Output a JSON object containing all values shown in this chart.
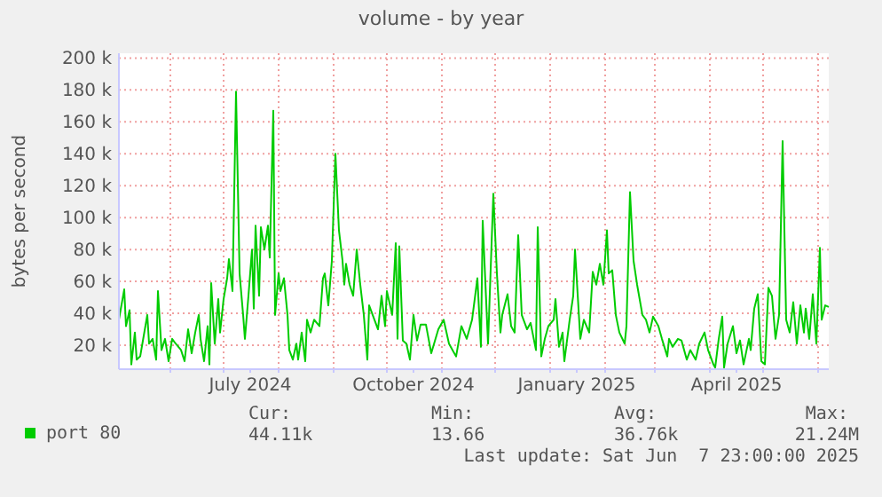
{
  "chart_data": {
    "type": "line",
    "title": "volume - by year",
    "ylabel": "bytes per second",
    "xlim": [
      "2024-05-03",
      "2025-06-07"
    ],
    "xticks": [
      {
        "value": "2024-06-01",
        "label": null
      },
      {
        "value": "2024-07-01",
        "label": null
      },
      {
        "value": "2024-07-16",
        "label": "July 2024"
      },
      {
        "value": "2024-08-01",
        "label": null
      },
      {
        "value": "2024-09-01",
        "label": null
      },
      {
        "value": "2024-10-01",
        "label": null
      },
      {
        "value": "2024-10-16",
        "label": "October 2024"
      },
      {
        "value": "2024-11-01",
        "label": null
      },
      {
        "value": "2024-12-01",
        "label": null
      },
      {
        "value": "2025-01-01",
        "label": null
      },
      {
        "value": "2025-01-16",
        "label": "January 2025"
      },
      {
        "value": "2025-02-01",
        "label": null
      },
      {
        "value": "2025-03-01",
        "label": null
      },
      {
        "value": "2025-04-01",
        "label": null
      },
      {
        "value": "2025-04-16",
        "label": "April 2025"
      },
      {
        "value": "2025-05-01",
        "label": null
      },
      {
        "value": "2025-06-01",
        "label": null
      }
    ],
    "ylim": [
      5000,
      203000
    ],
    "yticks": [
      {
        "value": 20000,
        "label": "20 k"
      },
      {
        "value": 40000,
        "label": "40 k"
      },
      {
        "value": 60000,
        "label": "60 k"
      },
      {
        "value": 80000,
        "label": "80 k"
      },
      {
        "value": 100000,
        "label": "100 k"
      },
      {
        "value": 120000,
        "label": "120 k"
      },
      {
        "value": 140000,
        "label": "140 k"
      },
      {
        "value": 160000,
        "label": "160 k"
      },
      {
        "value": 180000,
        "label": "180 k"
      },
      {
        "value": 200000,
        "label": "200 k"
      }
    ],
    "grid": true,
    "legend": "bottom",
    "marker": "none",
    "line_style": "solid",
    "annotations": [
      "Cur:",
      "44.11k",
      "Min:",
      "13.66",
      "Avg:",
      "36.76k",
      "Max:",
      "21.24M",
      "Last update: Sat Jun  7 23:00:00 2025"
    ],
    "series": [
      {
        "name": "port 80",
        "color": "#00cc00",
        "x": [
          "2024-05-03",
          "2024-05-06",
          "2024-05-07",
          "2024-05-09",
          "2024-05-10",
          "2024-05-12",
          "2024-05-13",
          "2024-05-15",
          "2024-05-17",
          "2024-05-19",
          "2024-05-20",
          "2024-05-22",
          "2024-05-24",
          "2024-05-25",
          "2024-05-27",
          "2024-05-29",
          "2024-05-31",
          "2024-06-02",
          "2024-06-04",
          "2024-06-07",
          "2024-06-09",
          "2024-06-11",
          "2024-06-13",
          "2024-06-15",
          "2024-06-17",
          "2024-06-18",
          "2024-06-20",
          "2024-06-22",
          "2024-06-23",
          "2024-06-24",
          "2024-06-26",
          "2024-06-28",
          "2024-06-29",
          "2024-07-01",
          "2024-07-03",
          "2024-07-04",
          "2024-07-06",
          "2024-07-08",
          "2024-07-10",
          "2024-07-12",
          "2024-07-13",
          "2024-07-15",
          "2024-07-17",
          "2024-07-18",
          "2024-07-19",
          "2024-07-21",
          "2024-07-22",
          "2024-07-24",
          "2024-07-26",
          "2024-07-27",
          "2024-07-29",
          "2024-07-30",
          "2024-08-01",
          "2024-08-02",
          "2024-08-04",
          "2024-08-06",
          "2024-08-07",
          "2024-08-09",
          "2024-08-11",
          "2024-08-12",
          "2024-08-14",
          "2024-08-16",
          "2024-08-17",
          "2024-08-19",
          "2024-08-21",
          "2024-08-24",
          "2024-08-26",
          "2024-08-27",
          "2024-08-29",
          "2024-08-31",
          "2024-09-02",
          "2024-09-04",
          "2024-09-06",
          "2024-09-07",
          "2024-09-08",
          "2024-09-10",
          "2024-09-12",
          "2024-09-14",
          "2024-09-16",
          "2024-09-18",
          "2024-09-20",
          "2024-09-21",
          "2024-09-23",
          "2024-09-26",
          "2024-09-28",
          "2024-09-30",
          "2024-10-01",
          "2024-10-04",
          "2024-10-06",
          "2024-10-07",
          "2024-10-08",
          "2024-10-10",
          "2024-10-12",
          "2024-10-14",
          "2024-10-16",
          "2024-10-18",
          "2024-10-20",
          "2024-10-23",
          "2024-10-26",
          "2024-10-30",
          "2024-11-02",
          "2024-11-05",
          "2024-11-09",
          "2024-11-12",
          "2024-11-15",
          "2024-11-18",
          "2024-11-21",
          "2024-11-23",
          "2024-11-24",
          "2024-11-27",
          "2024-11-30",
          "2024-12-02",
          "2024-12-04",
          "2024-12-05",
          "2024-12-08",
          "2024-12-10",
          "2024-12-12",
          "2024-12-14",
          "2024-12-16",
          "2024-12-19",
          "2024-12-21",
          "2024-12-24",
          "2024-12-25",
          "2024-12-27",
          "2024-12-29",
          "2024-12-31",
          "2025-01-03",
          "2025-01-04",
          "2025-01-06",
          "2025-01-08",
          "2025-01-09",
          "2025-01-12",
          "2025-01-14",
          "2025-01-15",
          "2025-01-18",
          "2025-01-20",
          "2025-01-23",
          "2025-01-25",
          "2025-01-27",
          "2025-01-29",
          "2025-01-31",
          "2025-02-02",
          "2025-02-03",
          "2025-02-05",
          "2025-02-07",
          "2025-02-09",
          "2025-02-12",
          "2025-02-13",
          "2025-02-15",
          "2025-02-17",
          "2025-02-19",
          "2025-02-22",
          "2025-02-24",
          "2025-02-26",
          "2025-02-28",
          "2025-03-03",
          "2025-03-05",
          "2025-03-08",
          "2025-03-09",
          "2025-03-11",
          "2025-03-14",
          "2025-03-16",
          "2025-03-19",
          "2025-03-21",
          "2025-03-24",
          "2025-03-26",
          "2025-03-29",
          "2025-03-31",
          "2025-04-03",
          "2025-04-04",
          "2025-04-06",
          "2025-04-08",
          "2025-04-09",
          "2025-04-11",
          "2025-04-14",
          "2025-04-16",
          "2025-04-18",
          "2025-04-20",
          "2025-04-23",
          "2025-04-24",
          "2025-04-26",
          "2025-04-28",
          "2025-04-30",
          "2025-05-02",
          "2025-05-04",
          "2025-05-06",
          "2025-05-08",
          "2025-05-10",
          "2025-05-12",
          "2025-05-14",
          "2025-05-16",
          "2025-05-18",
          "2025-05-20",
          "2025-05-22",
          "2025-05-24",
          "2025-05-25",
          "2025-05-27",
          "2025-05-29",
          "2025-05-31",
          "2025-06-02",
          "2025-06-03",
          "2025-06-05",
          "2025-06-07"
        ],
        "values": [
          36000,
          55000,
          32000,
          42000,
          8000,
          28000,
          11000,
          13000,
          26000,
          39000,
          21000,
          24000,
          11000,
          54000,
          17000,
          24000,
          10000,
          24000,
          21000,
          17000,
          10000,
          30000,
          15000,
          28000,
          39000,
          24000,
          10000,
          32000,
          8000,
          59000,
          21000,
          49000,
          28000,
          49000,
          62000,
          74000,
          54000,
          179000,
          65000,
          39000,
          24000,
          51000,
          80000,
          43000,
          95000,
          51000,
          94000,
          80000,
          95000,
          75000,
          167000,
          39000,
          65000,
          54000,
          62000,
          39000,
          17000,
          11000,
          21000,
          11000,
          28000,
          10000,
          36000,
          28000,
          36000,
          32000,
          62000,
          65000,
          45000,
          73000,
          140000,
          92000,
          73000,
          58000,
          71000,
          58000,
          51000,
          80000,
          58000,
          39000,
          11000,
          45000,
          39000,
          30000,
          51000,
          32000,
          54000,
          39000,
          84000,
          24000,
          82000,
          23000,
          21000,
          11000,
          39000,
          23000,
          33000,
          33000,
          15000,
          30000,
          36000,
          21000,
          13000,
          32000,
          24000,
          36000,
          62000,
          19000,
          98000,
          21000,
          115000,
          65000,
          28000,
          39000,
          52000,
          32000,
          28000,
          89000,
          39000,
          30000,
          34000,
          17000,
          94000,
          13000,
          24000,
          32000,
          36000,
          49000,
          19000,
          28000,
          10000,
          36000,
          51000,
          80000,
          24000,
          36000,
          28000,
          66000,
          58000,
          71000,
          58000,
          92000,
          65000,
          67000,
          39000,
          28000,
          21000,
          32000,
          116000,
          73000,
          58000,
          39000,
          36000,
          28000,
          38000,
          32000,
          24000,
          13000,
          24000,
          19000,
          24000,
          23000,
          11000,
          17000,
          11000,
          21000,
          28000,
          17000,
          8000,
          6000,
          24000,
          38000,
          6000,
          21000,
          32000,
          15000,
          23000,
          8000,
          24000,
          17000,
          43000,
          52000,
          10000,
          8000,
          56000,
          51000,
          24000,
          39000,
          148000,
          36000,
          28000,
          47000,
          21000,
          45000,
          28000,
          43000,
          24000,
          52000,
          21000,
          81000,
          36000,
          45000,
          44000
        ]
      }
    ]
  }
}
